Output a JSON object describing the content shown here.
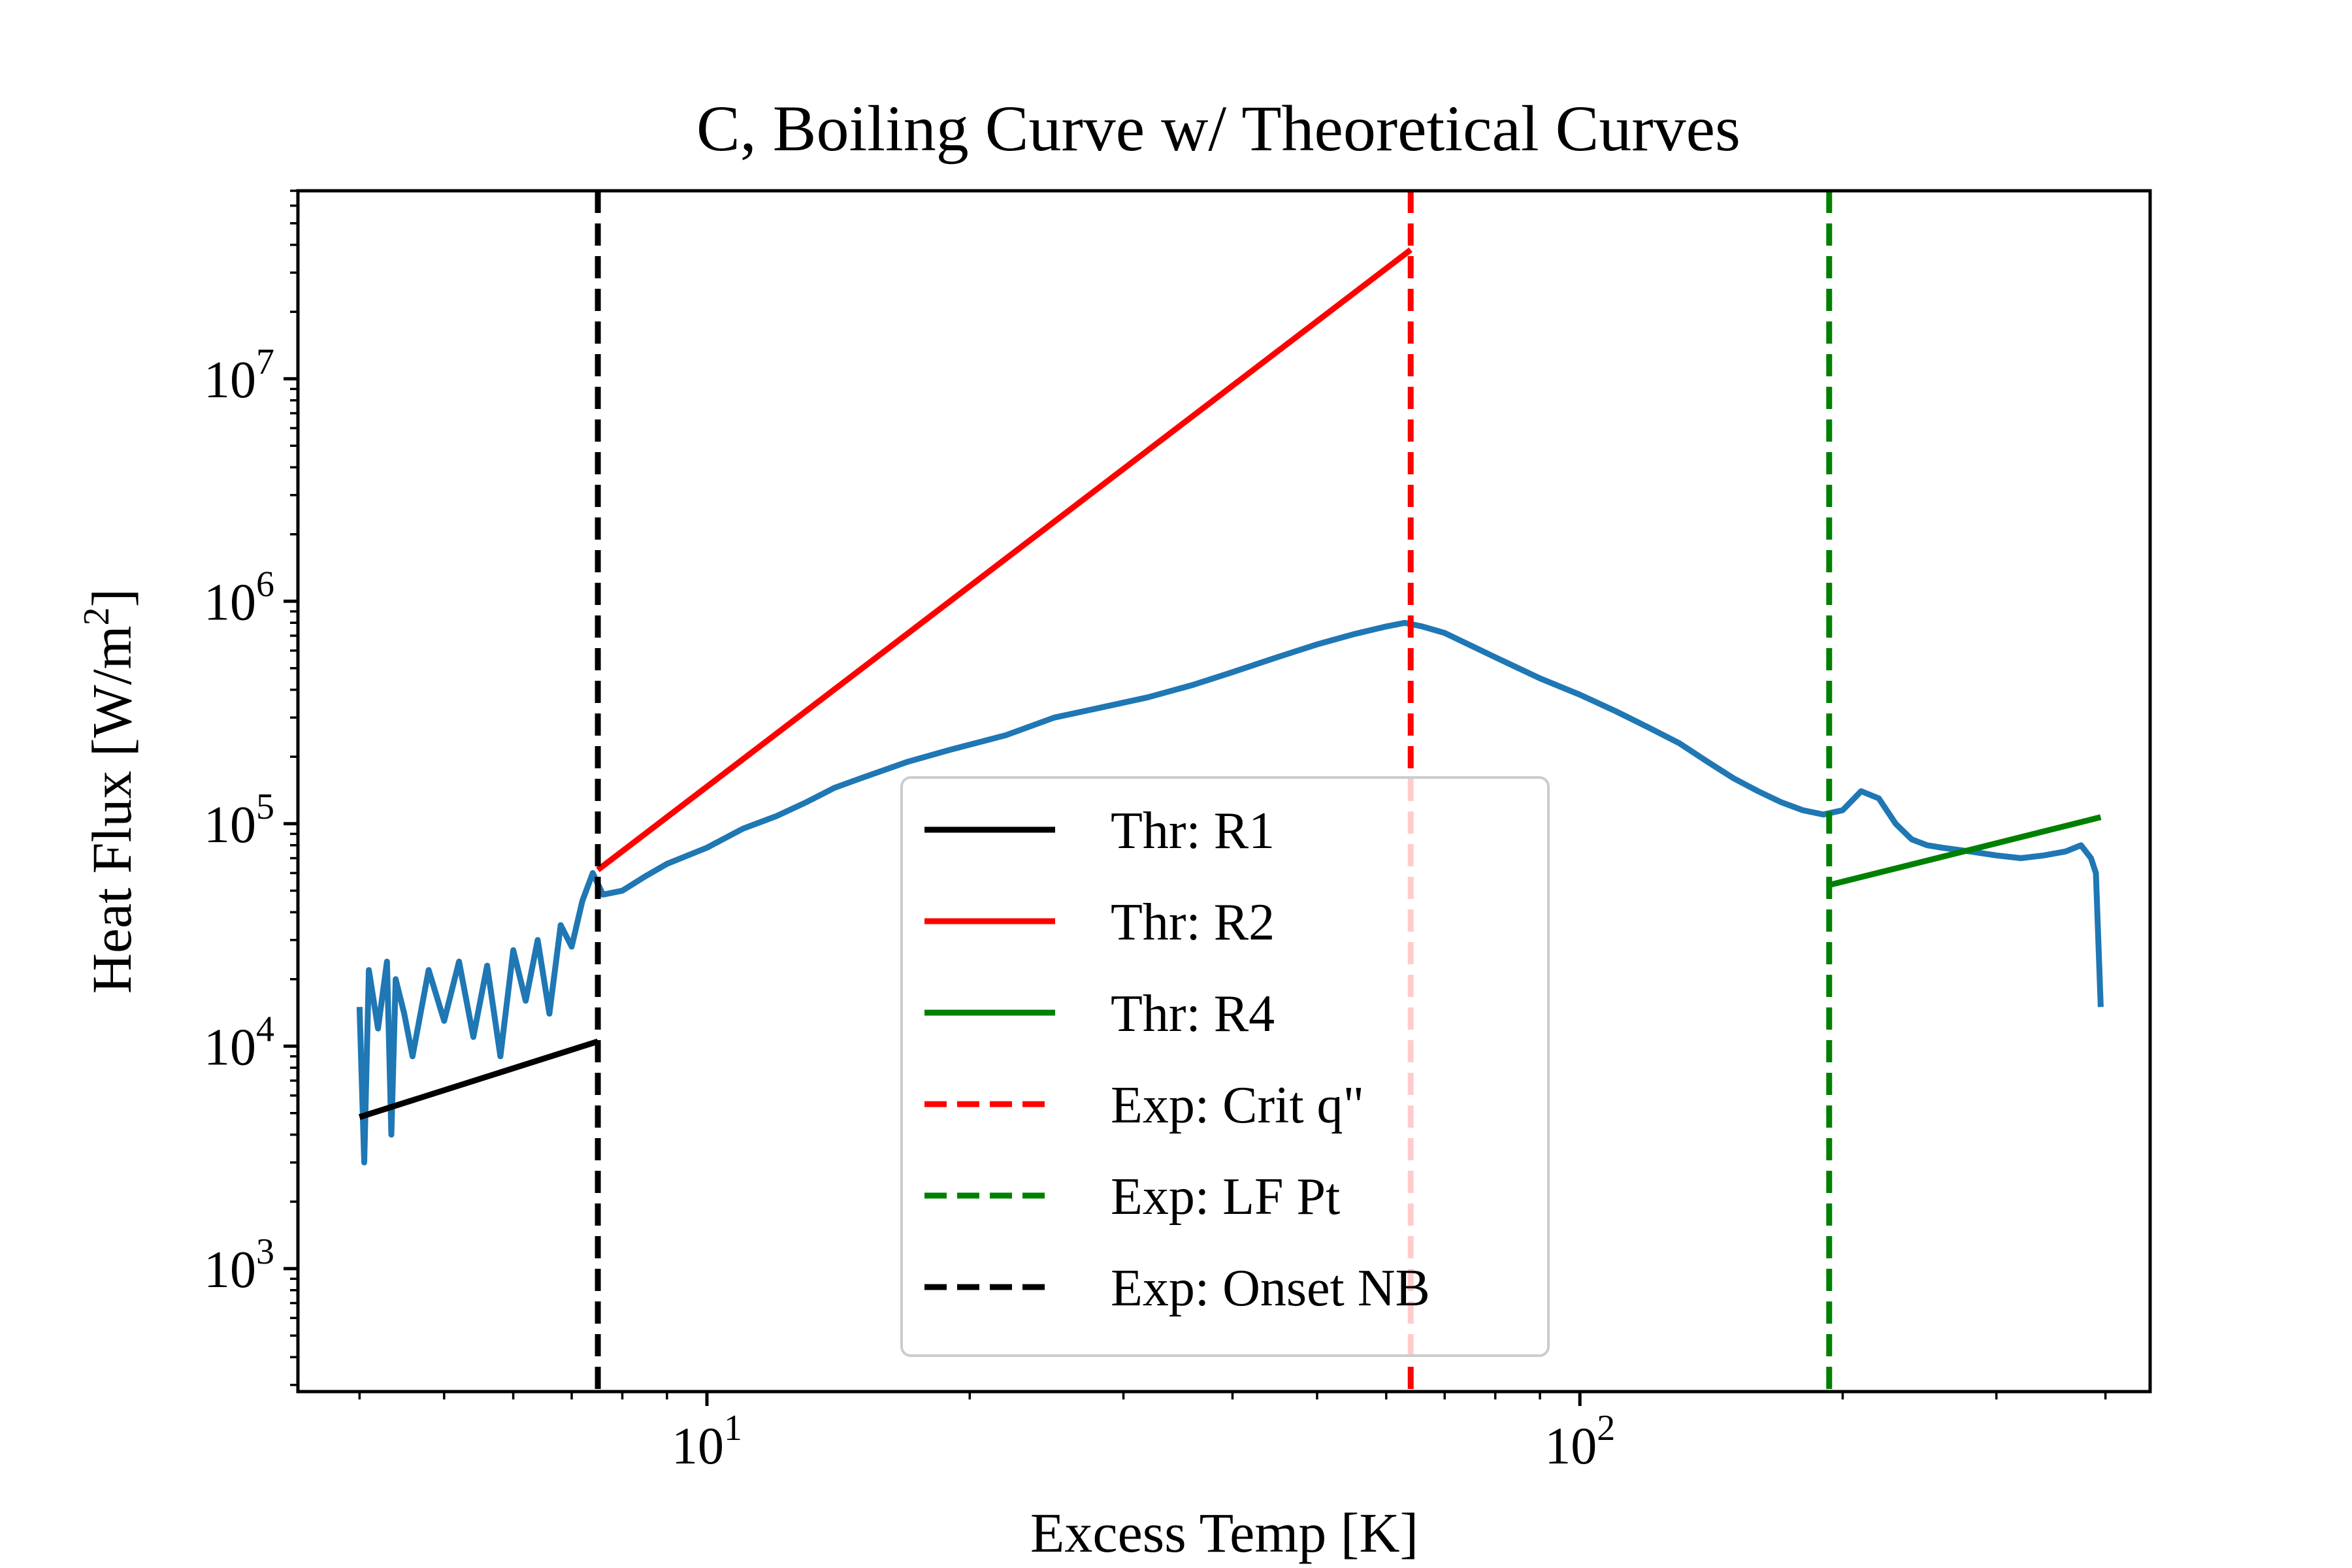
{
  "chart_data": {
    "type": "line",
    "title": "C, Boiling Curve w/ Theoretical Curves",
    "xlabel": "Excess Temp [K]",
    "ylabel_main": "Heat Flux [W/m",
    "ylabel_sup": "2",
    "ylabel_close": "]",
    "xscale": "log",
    "yscale": "log",
    "xlim": [
      3.4,
      450
    ],
    "ylim": [
      280,
      70000000
    ],
    "x_ticks": [
      {
        "value": 10,
        "base": "10",
        "exp": "1"
      },
      {
        "value": 100,
        "base": "10",
        "exp": "2"
      }
    ],
    "y_ticks": [
      {
        "value": 1000,
        "base": "10",
        "exp": "3"
      },
      {
        "value": 10000,
        "base": "10",
        "exp": "4"
      },
      {
        "value": 100000,
        "base": "10",
        "exp": "5"
      },
      {
        "value": 1000000,
        "base": "10",
        "exp": "6"
      },
      {
        "value": 10000000,
        "base": "10",
        "exp": "7"
      }
    ],
    "grid": false,
    "legend_position": "center-bottom",
    "colors": {
      "experimental": "#1f77b4",
      "r1": "#000000",
      "r2": "#ff0000",
      "r4": "#008000"
    },
    "experimental": {
      "color": "#1f77b4",
      "points": [
        [
          4.0,
          15000
        ],
        [
          4.05,
          3000
        ],
        [
          4.1,
          22000
        ],
        [
          4.2,
          12000
        ],
        [
          4.3,
          24000
        ],
        [
          4.35,
          4000
        ],
        [
          4.4,
          20000
        ],
        [
          4.5,
          14000
        ],
        [
          4.6,
          9000
        ],
        [
          4.8,
          22000
        ],
        [
          5.0,
          13000
        ],
        [
          5.2,
          24000
        ],
        [
          5.4,
          11000
        ],
        [
          5.6,
          23000
        ],
        [
          5.8,
          9000
        ],
        [
          6.0,
          27000
        ],
        [
          6.2,
          16000
        ],
        [
          6.4,
          30000
        ],
        [
          6.6,
          14000
        ],
        [
          6.8,
          35000
        ],
        [
          7.0,
          28000
        ],
        [
          7.2,
          45000
        ],
        [
          7.4,
          60000
        ],
        [
          7.6,
          48000
        ],
        [
          8.0,
          50000
        ],
        [
          8.5,
          58000
        ],
        [
          9.0,
          66000
        ],
        [
          10,
          78000
        ],
        [
          11,
          95000
        ],
        [
          12,
          108000
        ],
        [
          13,
          125000
        ],
        [
          14,
          145000
        ],
        [
          15,
          160000
        ],
        [
          17,
          190000
        ],
        [
          19,
          215000
        ],
        [
          22,
          250000
        ],
        [
          25,
          300000
        ],
        [
          28,
          330000
        ],
        [
          32,
          370000
        ],
        [
          36,
          420000
        ],
        [
          40,
          480000
        ],
        [
          45,
          560000
        ],
        [
          50,
          640000
        ],
        [
          55,
          710000
        ],
        [
          60,
          770000
        ],
        [
          63,
          800000
        ],
        [
          66,
          770000
        ],
        [
          70,
          720000
        ],
        [
          80,
          560000
        ],
        [
          90,
          450000
        ],
        [
          100,
          380000
        ],
        [
          110,
          320000
        ],
        [
          120,
          270000
        ],
        [
          130,
          230000
        ],
        [
          140,
          190000
        ],
        [
          150,
          160000
        ],
        [
          160,
          140000
        ],
        [
          170,
          125000
        ],
        [
          180,
          115000
        ],
        [
          190,
          110000
        ],
        [
          200,
          115000
        ],
        [
          210,
          140000
        ],
        [
          220,
          130000
        ],
        [
          230,
          100000
        ],
        [
          240,
          85000
        ],
        [
          250,
          80000
        ],
        [
          260,
          78000
        ],
        [
          280,
          75000
        ],
        [
          300,
          72000
        ],
        [
          320,
          70000
        ],
        [
          340,
          72000
        ],
        [
          360,
          75000
        ],
        [
          375,
          80000
        ],
        [
          385,
          70000
        ],
        [
          390,
          60000
        ],
        [
          395,
          15000
        ]
      ]
    },
    "series": [
      {
        "name": "Thr: R1",
        "style": "solid",
        "color": "#000000",
        "x": [
          4.0,
          7.5
        ],
        "y": [
          4800,
          10500
        ]
      },
      {
        "name": "Thr: R2",
        "style": "solid",
        "color": "#ff0000",
        "x": [
          7.5,
          64
        ],
        "y": [
          62000,
          38000000
        ]
      },
      {
        "name": "Thr: R4",
        "style": "solid",
        "color": "#008000",
        "x": [
          193,
          395
        ],
        "y": [
          53000,
          107000
        ]
      },
      {
        "name": "Exp: Crit q\"",
        "style": "dashed",
        "color": "#ff0000",
        "x_value": 64
      },
      {
        "name": "Exp: LF Pt",
        "style": "dashed",
        "color": "#008000",
        "x_value": 193
      },
      {
        "name": "Exp: Onset NB",
        "style": "dashed",
        "color": "#000000",
        "x_value": 7.5
      }
    ]
  }
}
